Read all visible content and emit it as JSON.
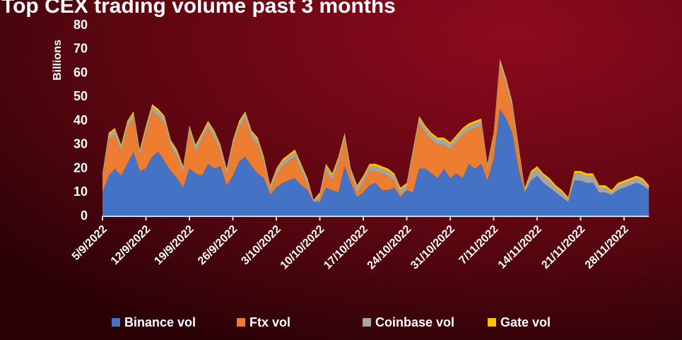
{
  "chart_data": {
    "type": "stacked_area",
    "title": "Top CEX trading volume past 3 months",
    "y_label": "Billions",
    "categories": [
      "5/9/2022",
      null,
      null,
      null,
      null,
      null,
      null,
      "12/9/2022",
      null,
      null,
      null,
      null,
      null,
      null,
      "19/9/2022",
      null,
      null,
      null,
      null,
      null,
      null,
      "26/9/2022",
      null,
      null,
      null,
      null,
      null,
      null,
      "3/10/2022",
      null,
      null,
      null,
      null,
      null,
      null,
      "10/10/2022",
      null,
      null,
      null,
      null,
      null,
      null,
      "17/10/2022",
      null,
      null,
      null,
      null,
      null,
      null,
      "24/10/2022",
      null,
      null,
      null,
      null,
      null,
      null,
      "31/10/2022",
      null,
      null,
      null,
      null,
      null,
      null,
      "7/11/2022",
      null,
      null,
      null,
      null,
      null,
      null,
      "14/11/2022",
      null,
      null,
      null,
      null,
      null,
      null,
      "21/11/2022",
      null,
      null,
      null,
      null,
      null,
      null,
      "28/11/2022",
      null,
      null,
      null,
      null
    ],
    "series": [
      {
        "name": "Binance vol",
        "color": "#4472c4",
        "values": [
          10,
          17,
          20,
          17,
          22,
          27,
          19,
          20,
          25,
          27,
          23,
          19,
          16,
          12,
          20,
          18,
          17,
          22,
          20,
          21,
          13,
          17,
          23,
          25,
          21,
          18,
          16,
          9,
          12,
          14,
          15,
          16,
          13,
          11,
          6,
          6,
          12,
          11,
          10,
          21,
          14,
          8,
          10,
          13,
          14,
          11,
          11,
          12,
          8,
          11,
          10,
          20,
          20,
          18,
          16,
          20,
          16,
          18,
          16,
          22,
          20,
          22,
          15,
          24,
          45,
          41,
          35,
          20,
          10,
          15,
          17,
          14,
          12,
          10,
          8,
          6,
          15,
          15,
          14,
          14,
          10,
          10,
          9,
          11,
          12,
          13,
          14,
          13,
          11
        ]
      },
      {
        "name": "Ftx vol",
        "color": "#ed7d31",
        "values": [
          5,
          15,
          14,
          10,
          15,
          14,
          6,
          15,
          19,
          15,
          16,
          10,
          9,
          6,
          15,
          9,
          15,
          15,
          13,
          6,
          4,
          12,
          14,
          16,
          12,
          12,
          6,
          1,
          5,
          7,
          8,
          9,
          6,
          2,
          0,
          1,
          7,
          4,
          12,
          11,
          3,
          2,
          4,
          6,
          5,
          7,
          6,
          3,
          1,
          0,
          15,
          19,
          15,
          14,
          14,
          10,
          12,
          13,
          18,
          14,
          17,
          16,
          4,
          8,
          18,
          14,
          10,
          7,
          0,
          0,
          0,
          0,
          0,
          0,
          0,
          0,
          0,
          0,
          0,
          0,
          0,
          0,
          0,
          0,
          0,
          0,
          0,
          0,
          0
        ]
      },
      {
        "name": "Coinbase vol",
        "color": "#a5a5a5",
        "values": [
          2,
          2,
          2,
          2,
          2,
          2,
          2,
          2,
          2,
          2,
          2,
          2,
          2,
          2,
          2,
          2,
          2,
          2,
          2,
          2,
          2,
          2,
          2,
          2,
          2,
          2,
          2,
          2,
          2,
          2,
          2,
          2,
          2,
          2,
          1,
          2,
          2,
          2,
          2,
          2,
          2,
          2,
          2,
          2,
          2,
          2,
          2,
          2,
          2,
          2,
          2,
          2,
          2,
          2,
          2,
          2,
          2,
          2,
          2,
          2,
          2,
          2,
          2,
          2,
          2,
          2,
          2,
          2,
          1,
          3,
          3,
          3,
          3,
          2,
          2,
          1,
          3,
          3,
          3,
          3,
          2,
          2,
          1,
          2,
          2,
          2,
          2,
          2,
          1
        ]
      },
      {
        "name": "Gate vol",
        "color": "#ffc000",
        "values": [
          1,
          1,
          1,
          1,
          1,
          1,
          1,
          1,
          1,
          1,
          1,
          1,
          1,
          1,
          1,
          1,
          1,
          1,
          1,
          1,
          1,
          1,
          1,
          1,
          1,
          1,
          1,
          1,
          1,
          1,
          1,
          1,
          1,
          1,
          0,
          1,
          1,
          1,
          1,
          1,
          1,
          1,
          1,
          1,
          1,
          1,
          1,
          1,
          1,
          1,
          1,
          1,
          1,
          1,
          1,
          1,
          1,
          1,
          1,
          1,
          1,
          1,
          1,
          1,
          1,
          1,
          1,
          1,
          1,
          1,
          1,
          1,
          1,
          1,
          1,
          1,
          1,
          1,
          1,
          1,
          1,
          1,
          1,
          1,
          1,
          1,
          1,
          1,
          1
        ]
      }
    ],
    "ylim": [
      0,
      80
    ],
    "yticks": [
      0,
      10,
      20,
      30,
      40,
      50,
      60,
      70,
      80
    ],
    "grid": false
  }
}
